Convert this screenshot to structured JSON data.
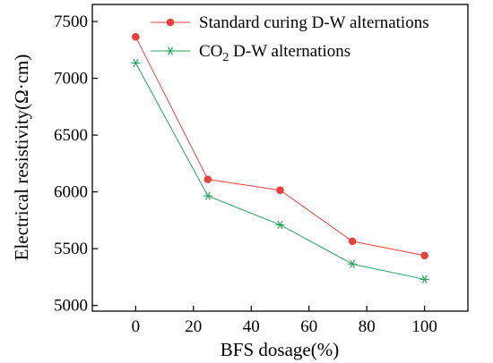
{
  "chart_data": {
    "type": "line",
    "xlabel": "BFS dosage(%)",
    "ylabel": "Electrical resistivity(Ω·cm)",
    "xlim": [
      -15,
      115
    ],
    "ylim": [
      4950,
      7650
    ],
    "xticks": [
      0,
      20,
      40,
      60,
      80,
      100
    ],
    "yticks": [
      5000,
      5500,
      6000,
      6500,
      7000,
      7500
    ],
    "grid": false,
    "legend_position": "top-right",
    "x": [
      0,
      25,
      50,
      75,
      100
    ],
    "series": [
      {
        "name": "Standard curing D-W alternations",
        "marker": "circle",
        "color": "#e8413c",
        "values": [
          7365,
          6110,
          6015,
          5565,
          5440
        ]
      },
      {
        "name": "CO2 D-W alternations",
        "marker": "asterisk",
        "color": "#2ca25f",
        "values": [
          7135,
          5965,
          5710,
          5365,
          5230
        ]
      }
    ]
  },
  "legend": {
    "labels": [
      {
        "main": "Standard curing D-W alternations",
        "sub": "",
        "rest": ""
      },
      {
        "main": "CO",
        "sub": "2",
        "rest": " D-W alternations"
      }
    ]
  }
}
